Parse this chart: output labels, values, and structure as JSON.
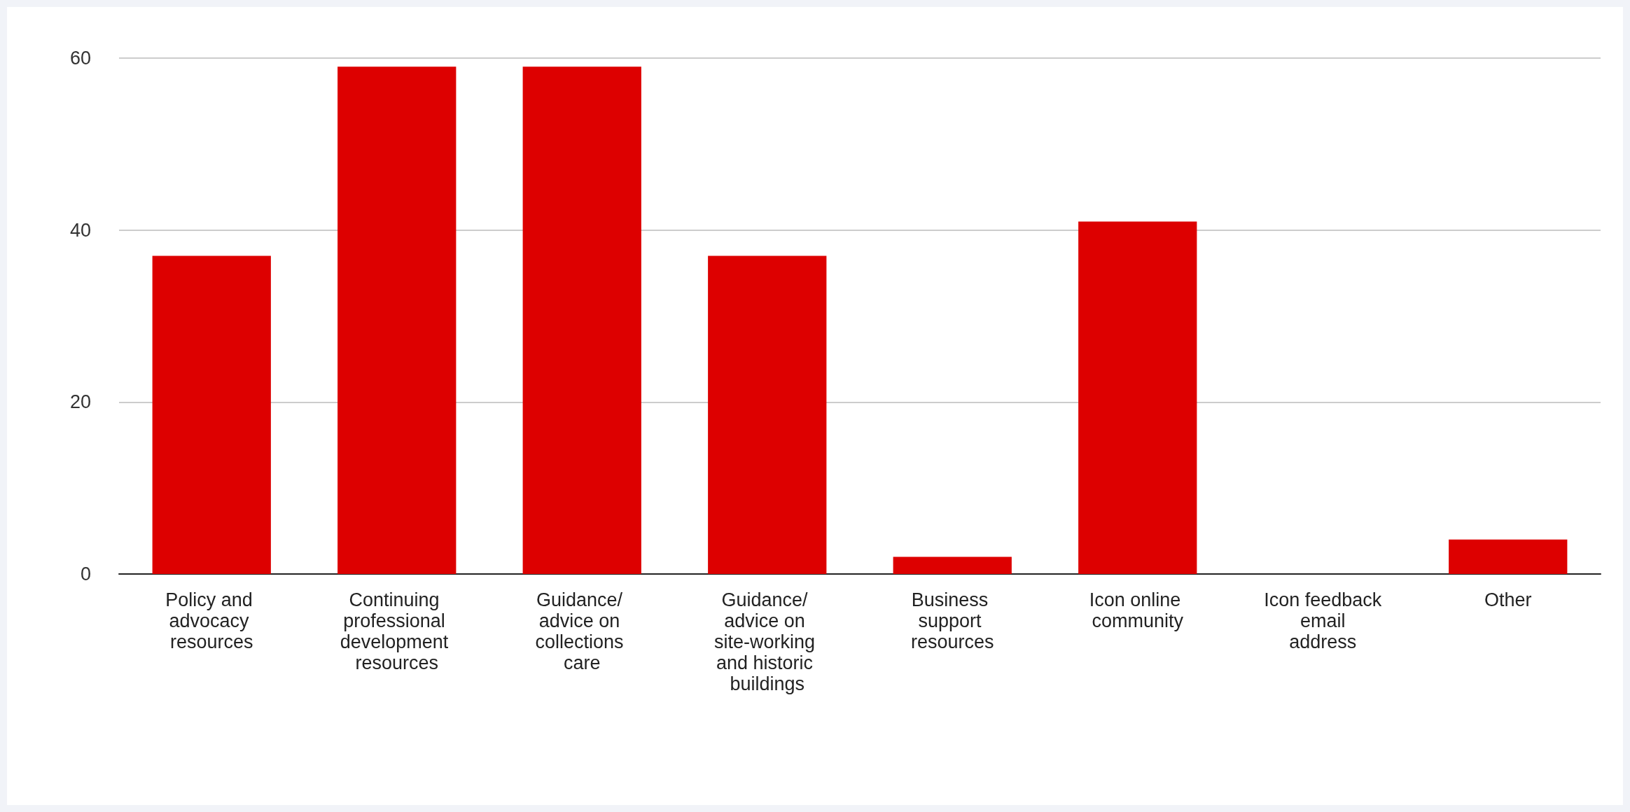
{
  "chart_data": {
    "type": "bar",
    "categories": [
      "Policy and advocacy resources",
      "Continuing professional development resources",
      "Guidance/ advice on collections care",
      "Guidance/ advice on site-working and historic buildings",
      "Business support resources",
      "Icon online community",
      "Icon feedback email address",
      "Other"
    ],
    "values": [
      37,
      59,
      59,
      37,
      2,
      41,
      0,
      4
    ],
    "color": "#dd0000",
    "ylim": [
      0,
      60
    ],
    "yticks": [
      0,
      20,
      40,
      60
    ],
    "grid": "y"
  }
}
